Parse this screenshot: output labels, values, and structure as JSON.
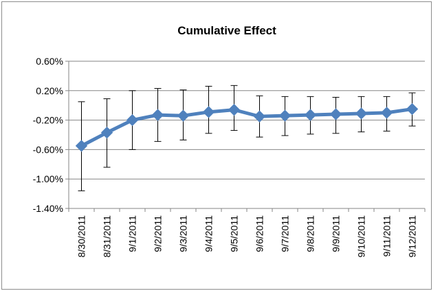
{
  "chart_data": {
    "type": "line",
    "title": "Cumulative Effect",
    "xlabel": "",
    "ylabel": "",
    "categories": [
      "8/30/2011",
      "8/31/2011",
      "9/1/2011",
      "9/2/2011",
      "9/3/2011",
      "9/4/2011",
      "9/5/2011",
      "9/6/2011",
      "9/7/2011",
      "9/8/2011",
      "9/9/2011",
      "9/10/2011",
      "9/11/2011",
      "9/12/2011"
    ],
    "series": [
      {
        "values": [
          -0.0055,
          -0.0037,
          -0.002,
          -0.0013,
          -0.0014,
          -0.0009,
          -0.0006,
          -0.0015,
          -0.0014,
          -0.0013,
          -0.0012,
          -0.0011,
          -0.001,
          -0.0005
        ],
        "error_low": [
          -0.0116,
          -0.0084,
          -0.006,
          -0.0049,
          -0.0047,
          -0.0038,
          -0.0034,
          -0.0043,
          -0.0041,
          -0.0039,
          -0.0038,
          -0.0036,
          -0.0035,
          -0.0028
        ],
        "error_high": [
          0.0005,
          0.0009,
          0.002,
          0.0023,
          0.0021,
          0.0026,
          0.0027,
          0.0013,
          0.0012,
          0.0012,
          0.0011,
          0.0012,
          0.0012,
          0.0017
        ],
        "color": "#4f81bd",
        "marker": "diamond"
      }
    ],
    "y_ticks": [
      "0.60%",
      "0.20%",
      "-0.20%",
      "-0.60%",
      "-1.00%",
      "-1.40%"
    ],
    "y_tick_values": [
      0.006,
      0.002,
      -0.002,
      -0.006,
      -0.01,
      -0.014
    ],
    "ylim": [
      -0.014,
      0.006
    ],
    "grid": true,
    "legend": "none"
  }
}
